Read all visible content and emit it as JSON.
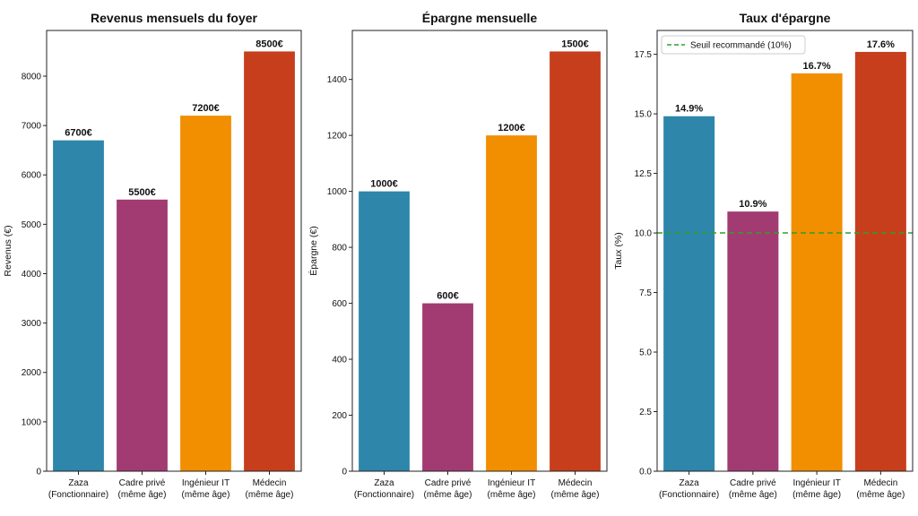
{
  "chart_data": [
    {
      "type": "bar",
      "title": "Revenus mensuels du foyer",
      "xlabel": "",
      "ylabel": "Revenus (€)",
      "categories": [
        "Zaza\n(Fonctionnaire)",
        "Cadre privé\n(même âge)",
        "Ingénieur IT\n(même âge)",
        "Médecin\n(même âge)"
      ],
      "values": [
        6700,
        5500,
        7200,
        8500
      ],
      "value_labels": [
        "6700€",
        "5500€",
        "7200€",
        "8500€"
      ],
      "colors": [
        "#2e86ab",
        "#a23b72",
        "#f18f01",
        "#c73e1d"
      ],
      "ylim": [
        0,
        8925
      ],
      "yticks": [
        0,
        1000,
        2000,
        3000,
        4000,
        5000,
        6000,
        7000,
        8000
      ],
      "ytick_labels": [
        "0",
        "1000",
        "2000",
        "3000",
        "4000",
        "5000",
        "6000",
        "7000",
        "8000"
      ],
      "grid": false
    },
    {
      "type": "bar",
      "title": "Épargne mensuelle",
      "xlabel": "",
      "ylabel": "Épargne (€)",
      "categories": [
        "Zaza\n(Fonctionnaire)",
        "Cadre privé\n(même âge)",
        "Ingénieur IT\n(même âge)",
        "Médecin\n(même âge)"
      ],
      "values": [
        1000,
        600,
        1200,
        1500
      ],
      "value_labels": [
        "1000€",
        "600€",
        "1200€",
        "1500€"
      ],
      "colors": [
        "#2e86ab",
        "#a23b72",
        "#f18f01",
        "#c73e1d"
      ],
      "ylim": [
        0,
        1575
      ],
      "yticks": [
        0,
        200,
        400,
        600,
        800,
        1000,
        1200,
        1400
      ],
      "ytick_labels": [
        "0",
        "200",
        "400",
        "600",
        "800",
        "1000",
        "1200",
        "1400"
      ],
      "grid": false
    },
    {
      "type": "bar",
      "title": "Taux d'épargne",
      "xlabel": "",
      "ylabel": "Taux (%)",
      "categories": [
        "Zaza\n(Fonctionnaire)",
        "Cadre privé\n(même âge)",
        "Ingénieur IT\n(même âge)",
        "Médecin\n(même âge)"
      ],
      "values": [
        14.9,
        10.9,
        16.7,
        17.6
      ],
      "value_labels": [
        "14.9%",
        "10.9%",
        "16.7%",
        "17.6%"
      ],
      "colors": [
        "#2e86ab",
        "#a23b72",
        "#f18f01",
        "#c73e1d"
      ],
      "ylim": [
        0,
        18.5
      ],
      "yticks": [
        0,
        2.5,
        5,
        7.5,
        10,
        12.5,
        15,
        17.5
      ],
      "ytick_labels": [
        "0.0",
        "2.5",
        "5.0",
        "7.5",
        "10.0",
        "12.5",
        "15.0",
        "17.5"
      ],
      "reference_line": {
        "value": 10,
        "label": "Seuil recommandé (10%)",
        "color": "#2ca02c",
        "style": "dashed"
      },
      "legend_position": "top-left",
      "grid": false
    }
  ]
}
